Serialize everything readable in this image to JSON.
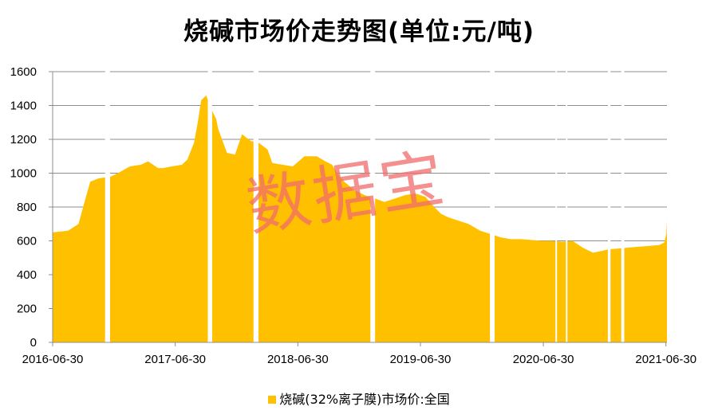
{
  "chart_data": {
    "type": "area",
    "title": "烧碱市场价走势图(单位:元/吨)",
    "xlabel": "",
    "ylabel": "",
    "ylim": [
      0,
      1600
    ],
    "y_ticks": [
      "0",
      "200",
      "400",
      "600",
      "800",
      "1000",
      "1200",
      "1400",
      "1600"
    ],
    "x_ticks": [
      "2016-06-30",
      "2017-06-30",
      "2018-06-30",
      "2019-06-30",
      "2020-06-30",
      "2021-06-30"
    ],
    "xlim": [
      "2016-06-30",
      "2021-07-03"
    ],
    "grid": "horizontal",
    "legend_position": "bottom",
    "series": [
      {
        "name": "烧碱(32%离子膜)市场价:全国",
        "color": "#FFC000",
        "x": [
          "2016-06-30",
          "2016-08-15",
          "2016-09-15",
          "2016-10-10",
          "2016-10-20",
          "2016-11-15",
          "2016-12-20",
          "2017-01-10",
          "2017-02-15",
          "2017-03-20",
          "2017-04-10",
          "2017-05-10",
          "2017-05-25",
          "2017-06-20",
          "2017-07-20",
          "2017-08-05",
          "2017-08-25",
          "2017-09-05",
          "2017-09-15",
          "2017-09-30",
          "2017-10-15",
          "2017-10-30",
          "2017-11-05",
          "2017-12-01",
          "2017-12-25",
          "2018-01-15",
          "2018-02-10",
          "2018-03-05",
          "2018-04-01",
          "2018-04-15",
          "2018-05-15",
          "2018-06-15",
          "2018-07-20",
          "2018-08-25",
          "2018-09-20",
          "2018-10-10",
          "2018-10-25",
          "2018-11-15",
          "2018-12-15",
          "2019-01-15",
          "2019-02-15",
          "2019-03-15",
          "2019-04-15",
          "2019-05-15",
          "2019-06-15",
          "2019-07-15",
          "2019-08-10",
          "2019-08-30",
          "2019-09-20",
          "2019-10-20",
          "2019-11-20",
          "2019-12-25",
          "2020-01-25",
          "2020-02-25",
          "2020-03-25",
          "2020-04-25",
          "2020-05-25",
          "2020-06-25",
          "2020-07-25",
          "2020-08-25",
          "2020-09-25",
          "2020-10-25",
          "2020-11-25",
          "2020-12-20",
          "2021-01-10",
          "2021-02-10",
          "2021-03-10",
          "2021-04-10",
          "2021-05-10",
          "2021-06-10",
          "2021-06-25",
          "2021-07-01",
          "2021-07-03"
        ],
        "values": [
          650,
          660,
          700,
          880,
          950,
          970,
          980,
          1000,
          1040,
          1050,
          1070,
          1030,
          1030,
          1040,
          1050,
          1080,
          1180,
          1300,
          1430,
          1460,
          1380,
          1320,
          1260,
          1120,
          1110,
          1230,
          1190,
          1180,
          1140,
          1060,
          1050,
          1040,
          1100,
          1100,
          1070,
          1050,
          1000,
          950,
          900,
          870,
          850,
          830,
          850,
          870,
          880,
          860,
          800,
          760,
          740,
          720,
          700,
          660,
          640,
          620,
          610,
          610,
          605,
          600,
          600,
          595,
          600,
          560,
          530,
          540,
          550,
          555,
          560,
          565,
          570,
          575,
          590,
          640,
          720
        ]
      }
    ],
    "gaps": [
      [
        "2016-12-03",
        "2016-12-18"
      ],
      [
        "2017-10-05",
        "2017-10-18"
      ],
      [
        "2018-02-18",
        "2018-03-05"
      ],
      [
        "2019-02-01",
        "2019-02-15"
      ],
      [
        "2020-01-23",
        "2020-02-06"
      ],
      [
        "2020-08-05",
        "2020-08-09"
      ],
      [
        "2020-09-05",
        "2020-09-09"
      ],
      [
        "2021-01-08",
        "2021-01-16"
      ],
      [
        "2021-02-17",
        "2021-02-26"
      ]
    ]
  },
  "watermark": "数据宝"
}
